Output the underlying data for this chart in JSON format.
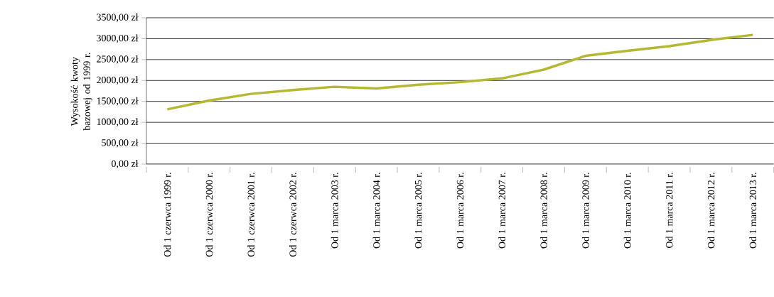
{
  "chart_data": {
    "type": "line",
    "ylabel": "Wysokość kwoty bazowej od 1999 r.",
    "categories": [
      "Od 1 czerwca 1999 r.",
      "Od 1 czerwca 2000 r.",
      "Od 1 czerwca 2001 r.",
      "Od 1 czerwca 2002 r.",
      "Od 1 marca 2003 r.",
      "Od 1 marca 2004 r.",
      "Od 1 marca 2005 r.",
      "Od 1 marca 2006 r.",
      "Od 1 marca 2007 r.",
      "Od 1 marca 2008 r.",
      "Od 1 marca 2009 r.",
      "Od 1 marca 2010 r.",
      "Od 1 marca 2011 r.",
      "Od 1 marca 2012 r.",
      "Od 1 marca 2013 r."
    ],
    "series": [
      {
        "color": "#b5b832",
        "values": [
          1310,
          1520,
          1680,
          1770,
          1850,
          1810,
          1900,
          1960,
          2050,
          2260,
          2590,
          2710,
          2820,
          2970,
          3090
        ]
      }
    ],
    "ylim": [
      0,
      3500
    ],
    "yticks": [
      {
        "value": 0,
        "label": "0,00 zł"
      },
      {
        "value": 500,
        "label": "500,00 zł"
      },
      {
        "value": 1000,
        "label": "1000,00 zł"
      },
      {
        "value": 1500,
        "label": "1500,00 zł"
      },
      {
        "value": 2000,
        "label": "2000,00 zł"
      },
      {
        "value": 2500,
        "label": "2500,00 zł"
      },
      {
        "value": 3000,
        "label": "3000,00 zł"
      },
      {
        "value": 3500,
        "label": "3500,00 zł"
      }
    ],
    "grid": "y",
    "marker": "none",
    "line_style": "solid"
  }
}
